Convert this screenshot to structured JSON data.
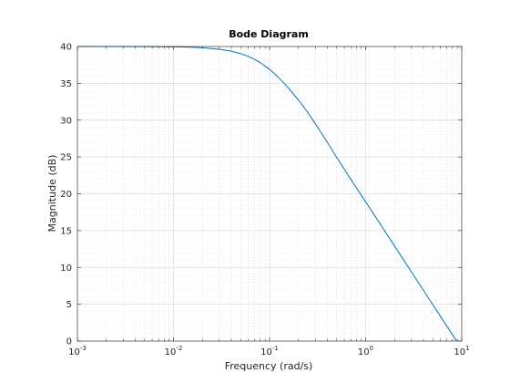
{
  "chart_data": {
    "type": "line",
    "title": "Bode Diagram",
    "xlabel": "Frequency  (rad/s)",
    "ylabel": "Magnitude (dB)",
    "xscale": "log",
    "xlim": [
      0.001,
      10
    ],
    "ylim": [
      0,
      40
    ],
    "x_ticks": [
      {
        "value": 0.001,
        "base": "10",
        "exp": "-3"
      },
      {
        "value": 0.01,
        "base": "10",
        "exp": "-2"
      },
      {
        "value": 0.1,
        "base": "10",
        "exp": "-1"
      },
      {
        "value": 1,
        "base": "10",
        "exp": "0"
      },
      {
        "value": 10,
        "base": "10",
        "exp": "1"
      }
    ],
    "y_ticks": [
      "0",
      "5",
      "10",
      "15",
      "20",
      "25",
      "30",
      "35",
      "40"
    ],
    "grid": true,
    "minor_grid": true,
    "colors": {
      "line": "#0072bd",
      "major_grid": "#dcdcdc",
      "minor_grid": "#c8c8c8",
      "axes": "#262626"
    },
    "series": [
      {
        "x": [
          0.001,
          0.002,
          0.005,
          0.01,
          0.015,
          0.02,
          0.03,
          0.04,
          0.05,
          0.06,
          0.07,
          0.08,
          0.1,
          0.12,
          0.15,
          0.2,
          0.25,
          0.3,
          0.4,
          0.5,
          0.7,
          1,
          1.5,
          2,
          3,
          5,
          7,
          10
        ],
        "values": [
          40,
          40,
          39.99,
          39.96,
          39.9,
          39.83,
          39.63,
          39.36,
          39.03,
          38.66,
          38.25,
          37.8,
          36.9,
          35.98,
          34.67,
          32.74,
          31.02,
          29.5,
          26.97,
          24.94,
          21.97,
          18.91,
          15.4,
          12.9,
          9.38,
          4.94,
          2.02,
          -1.05
        ]
      }
    ]
  }
}
